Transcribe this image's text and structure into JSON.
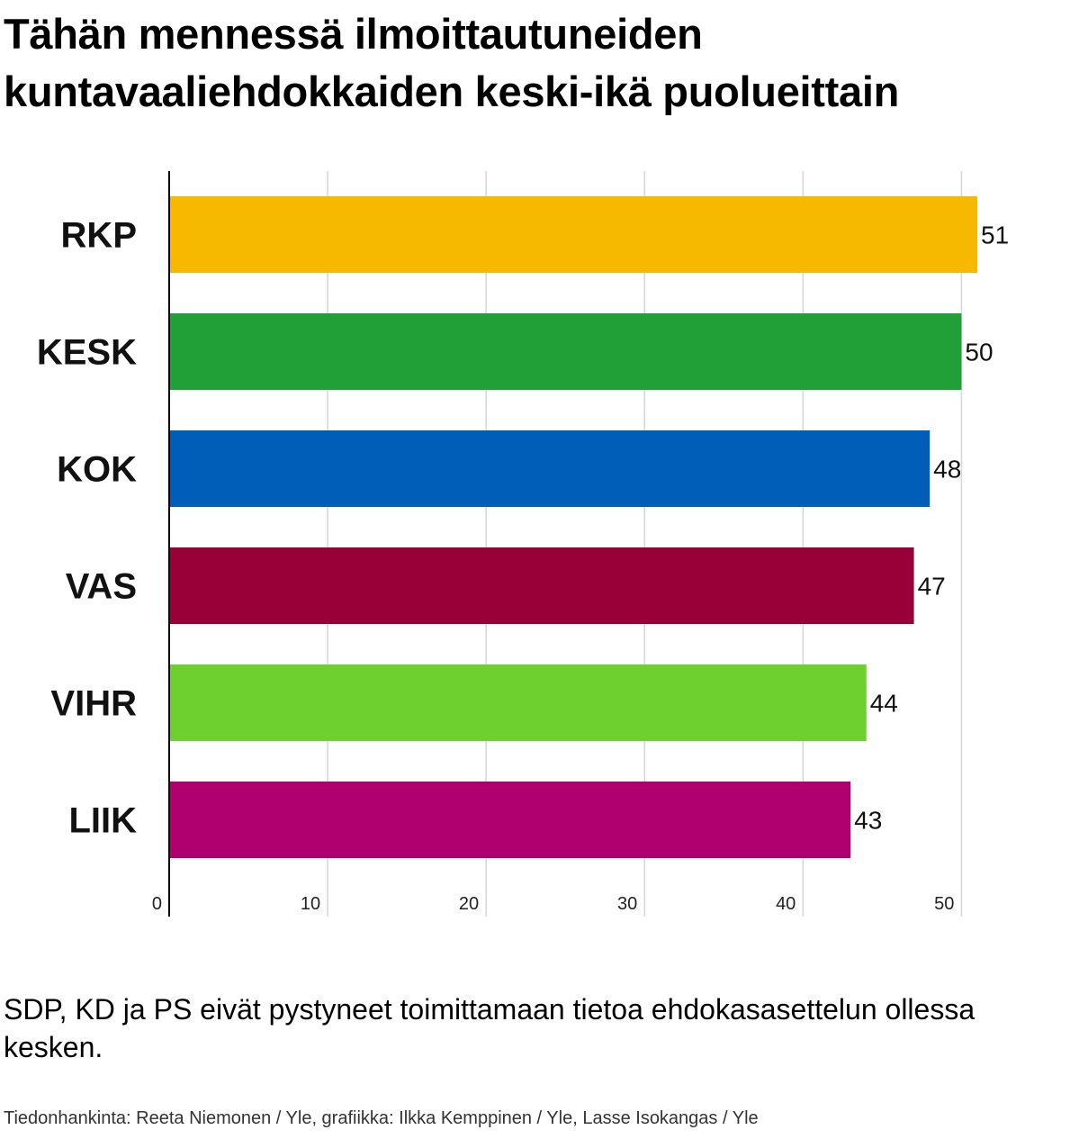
{
  "title": "Tähän mennessä ilmoittautuneiden kuntavaaliehdokkaiden keski-ikä puolueittain",
  "note": "SDP, KD ja PS eivät pystyneet toimittamaan tietoa ehdokasasettelun ollessa kesken.",
  "source": "Tiedonhankinta: Reeta Niemonen / Yle, grafiikka: Ilkka Kemppinen / Yle, Lasse Isokangas / Yle",
  "chart_data": {
    "type": "bar",
    "orientation": "horizontal",
    "categories": [
      "RKP",
      "KESK",
      "KOK",
      "VAS",
      "VIHR",
      "LIIK"
    ],
    "values": [
      51,
      50,
      48,
      47,
      44,
      43
    ],
    "value_labels": [
      "51",
      "50",
      "48",
      "47",
      "44",
      "43"
    ],
    "colors": [
      "#f7b800",
      "#21a038",
      "#005eb8",
      "#990038",
      "#6dd02e",
      "#b0006f"
    ],
    "xlim": [
      0,
      51
    ],
    "xticks": [
      0,
      10,
      20,
      30,
      40,
      50
    ],
    "xtick_labels": [
      "0",
      "10",
      "20",
      "30",
      "40",
      "50"
    ],
    "grid": true,
    "legend": "none"
  }
}
